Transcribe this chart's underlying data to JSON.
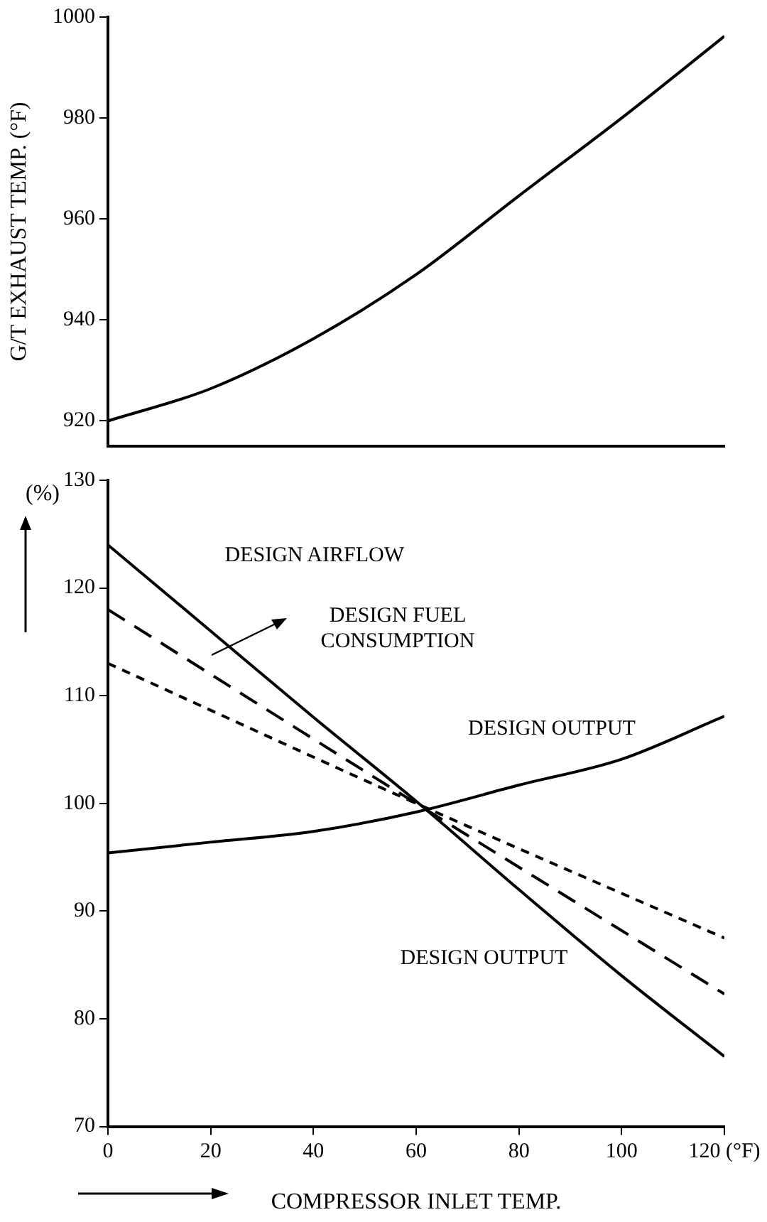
{
  "chart_data": [
    {
      "type": "line",
      "ylabel": "G/T EXHAUST TEMP. (°F)",
      "xlim": [
        0,
        120
      ],
      "ylim": [
        915,
        1000
      ],
      "yticks": [
        920,
        940,
        960,
        980,
        1000
      ],
      "tick_labels": "y",
      "grid": false,
      "legend": false,
      "marker": "none",
      "series": [
        {
          "color": "#000000",
          "line_style": "solid",
          "x": [
            0,
            20,
            40,
            60,
            80,
            100,
            120
          ],
          "values": [
            920,
            926.4,
            936.3,
            949,
            964.6,
            980,
            996.2
          ]
        }
      ]
    },
    {
      "type": "line",
      "ylabel": "(%)",
      "xlabel": "COMPRESSOR INLET TEMP.",
      "xlim": [
        0,
        120
      ],
      "ylim": [
        70,
        130
      ],
      "xticks": [
        0,
        20,
        40,
        60,
        80,
        100,
        {
          "value": 120,
          "label": "120 (°F)"
        }
      ],
      "yticks": [
        70,
        80,
        90,
        100,
        110,
        120,
        130
      ],
      "grid": false,
      "legend": false,
      "marker": "none",
      "annotations": [
        "DESIGN AIRFLOW",
        "DESIGN FUEL CONSUMPTION",
        "DESIGN OUTPUT",
        "DESIGN OUTPUT"
      ],
      "series": [
        {
          "color": "#000000",
          "line_style": "solid",
          "x": [
            0,
            20,
            40,
            60,
            80,
            100,
            120
          ],
          "values": [
            124,
            116,
            108,
            100.2,
            92,
            84,
            76.5
          ]
        },
        {
          "color": "#000000",
          "line_style": "dashed",
          "x": [
            0,
            60,
            120
          ],
          "values": [
            118,
            100,
            82.3
          ]
        },
        {
          "color": "#000000",
          "line_style": "dotted",
          "x": [
            0,
            60,
            120
          ],
          "values": [
            113,
            100,
            87.5
          ]
        },
        {
          "color": "#000000",
          "line_style": "solid",
          "x": [
            0,
            20,
            40,
            60,
            80,
            100,
            120
          ],
          "values": [
            95.4,
            96.4,
            97.4,
            99.2,
            101.7,
            104.1,
            108.1
          ]
        }
      ]
    }
  ]
}
